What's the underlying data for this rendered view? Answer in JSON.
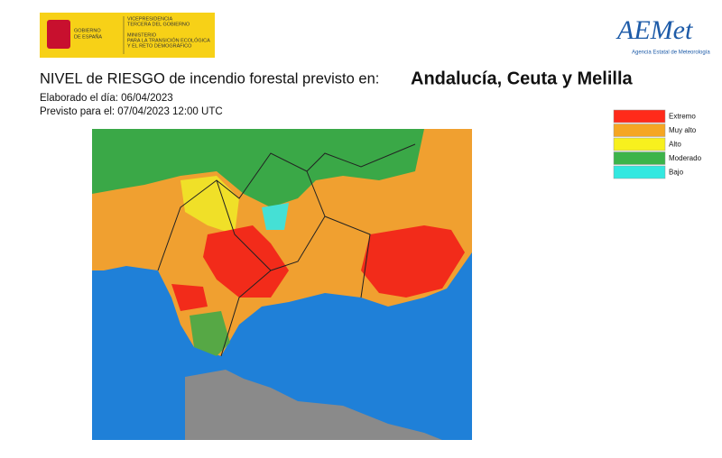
{
  "header": {
    "government": [
      "GOBIERNO",
      "DE ESPAÑA"
    ],
    "vicepresidency": [
      "VICEPRESIDENCIA",
      "TERCERA DEL GOBIERNO"
    ],
    "ministry": [
      "MINISTERIO",
      "PARA LA TRANSICIÓN ECOLÓGICA",
      "Y EL RETO DEMOGRÁFICO"
    ],
    "agency": "AEMet",
    "agency_name": "Agencia Estatal de Meteorología"
  },
  "title": "NIVEL de RIESGO de incendio forestal previsto en:",
  "region": "Andalucía, Ceuta y Melilla",
  "issued": "Elaborado el día: 06/04/2023",
  "valid": "Previsto para el: 07/04/2023 12:00 UTC",
  "legend": [
    {
      "label": "Extremo",
      "color": "#ff2a1a"
    },
    {
      "label": "Muy alto",
      "color": "#f5a623"
    },
    {
      "label": "Alto",
      "color": "#f7f01e"
    },
    {
      "label": "Moderado",
      "color": "#3cb44a"
    },
    {
      "label": "Bajo",
      "color": "#33e8e0"
    }
  ]
}
